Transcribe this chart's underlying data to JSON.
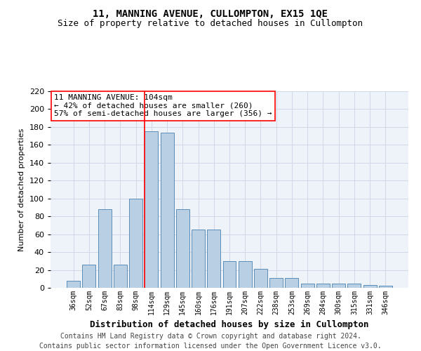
{
  "title": "11, MANNING AVENUE, CULLOMPTON, EX15 1QE",
  "subtitle": "Size of property relative to detached houses in Cullompton",
  "xlabel": "Distribution of detached houses by size in Cullompton",
  "ylabel": "Number of detached properties",
  "categories": [
    "36sqm",
    "52sqm",
    "67sqm",
    "83sqm",
    "98sqm",
    "114sqm",
    "129sqm",
    "145sqm",
    "160sqm",
    "176sqm",
    "191sqm",
    "207sqm",
    "222sqm",
    "238sqm",
    "253sqm",
    "269sqm",
    "284sqm",
    "300sqm",
    "315sqm",
    "331sqm",
    "346sqm"
  ],
  "values": [
    8,
    26,
    88,
    26,
    100,
    175,
    174,
    88,
    65,
    65,
    30,
    30,
    21,
    11,
    11,
    5,
    5,
    5,
    5,
    3,
    2
  ],
  "bar_color": "#b8cfe4",
  "bar_edge_color": "#5b8db8",
  "grid_color": "#d0d8e8",
  "bg_color": "#eef2f9",
  "ylim": [
    0,
    220
  ],
  "yticks": [
    0,
    20,
    40,
    60,
    80,
    100,
    120,
    140,
    160,
    180,
    200,
    220
  ],
  "red_line_x": 4.575,
  "annotation_text": "11 MANNING AVENUE: 104sqm\n← 42% of detached houses are smaller (260)\n57% of semi-detached houses are larger (356) →",
  "footer": "Contains HM Land Registry data © Crown copyright and database right 2024.\nContains public sector information licensed under the Open Government Licence v3.0.",
  "title_fontsize": 10,
  "subtitle_fontsize": 9,
  "annotation_fontsize": 8,
  "footer_fontsize": 7,
  "ylabel_fontsize": 8,
  "xlabel_fontsize": 9
}
